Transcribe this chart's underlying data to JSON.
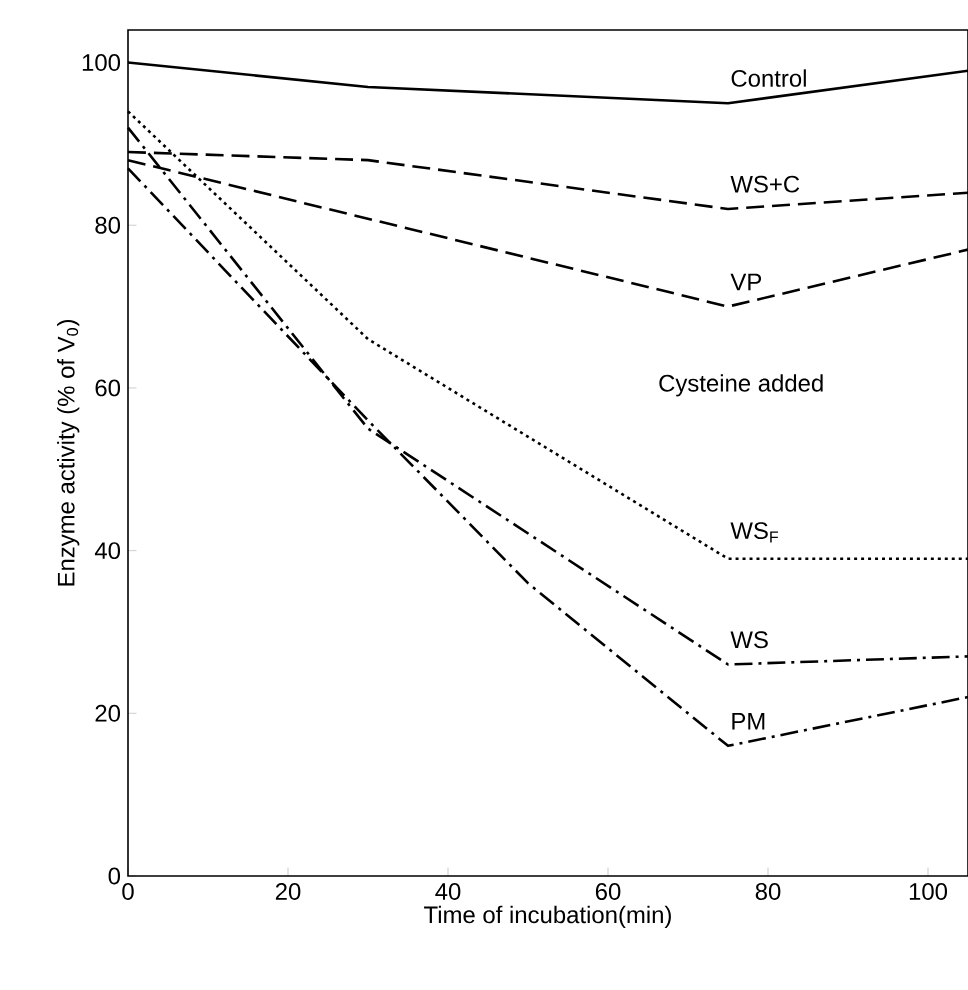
{
  "chart_data": {
    "type": "line",
    "xlabel": "Time of incubation(min)",
    "ylabel": "Enzyme activity (% of V$_{0}$)",
    "xlim": [
      0,
      105
    ],
    "ylim": [
      0,
      104
    ],
    "xticks": [
      0,
      20,
      40,
      60,
      80,
      100
    ],
    "yticks": [
      0,
      20,
      40,
      60,
      80,
      100
    ],
    "grid": false,
    "legend": false,
    "marker": "none",
    "annotations": [
      "Cysteine added"
    ],
    "series": [
      {
        "name": "Control",
        "color": "#000000",
        "line_style": "solid",
        "x": [
          0,
          30,
          75,
          105
        ],
        "values": [
          100,
          97,
          95,
          99
        ]
      },
      {
        "name": "WS+C",
        "color": "#000000",
        "line_style": "dashed",
        "x": [
          0,
          30,
          75,
          105
        ],
        "values": [
          89,
          88,
          82,
          84
        ]
      },
      {
        "name": "VP",
        "color": "#000000",
        "line_style": "dashed",
        "x": [
          0,
          75,
          105
        ],
        "values": [
          88,
          70,
          77
        ]
      },
      {
        "name": "WS$_{F}$",
        "color": "#000000",
        "line_style": "dotted",
        "x": [
          0,
          30,
          75,
          105
        ],
        "values": [
          94,
          66,
          39,
          39
        ]
      },
      {
        "name": "WS",
        "color": "#000000",
        "line_style": "dashdot",
        "x": [
          0,
          30,
          75,
          105
        ],
        "values": [
          92,
          55,
          26,
          27
        ]
      },
      {
        "name": "PM",
        "color": "#000000",
        "line_style": "dashdot",
        "x": [
          0,
          30,
          50,
          75,
          105
        ],
        "values": [
          87,
          56,
          36,
          16,
          22
        ]
      }
    ]
  }
}
